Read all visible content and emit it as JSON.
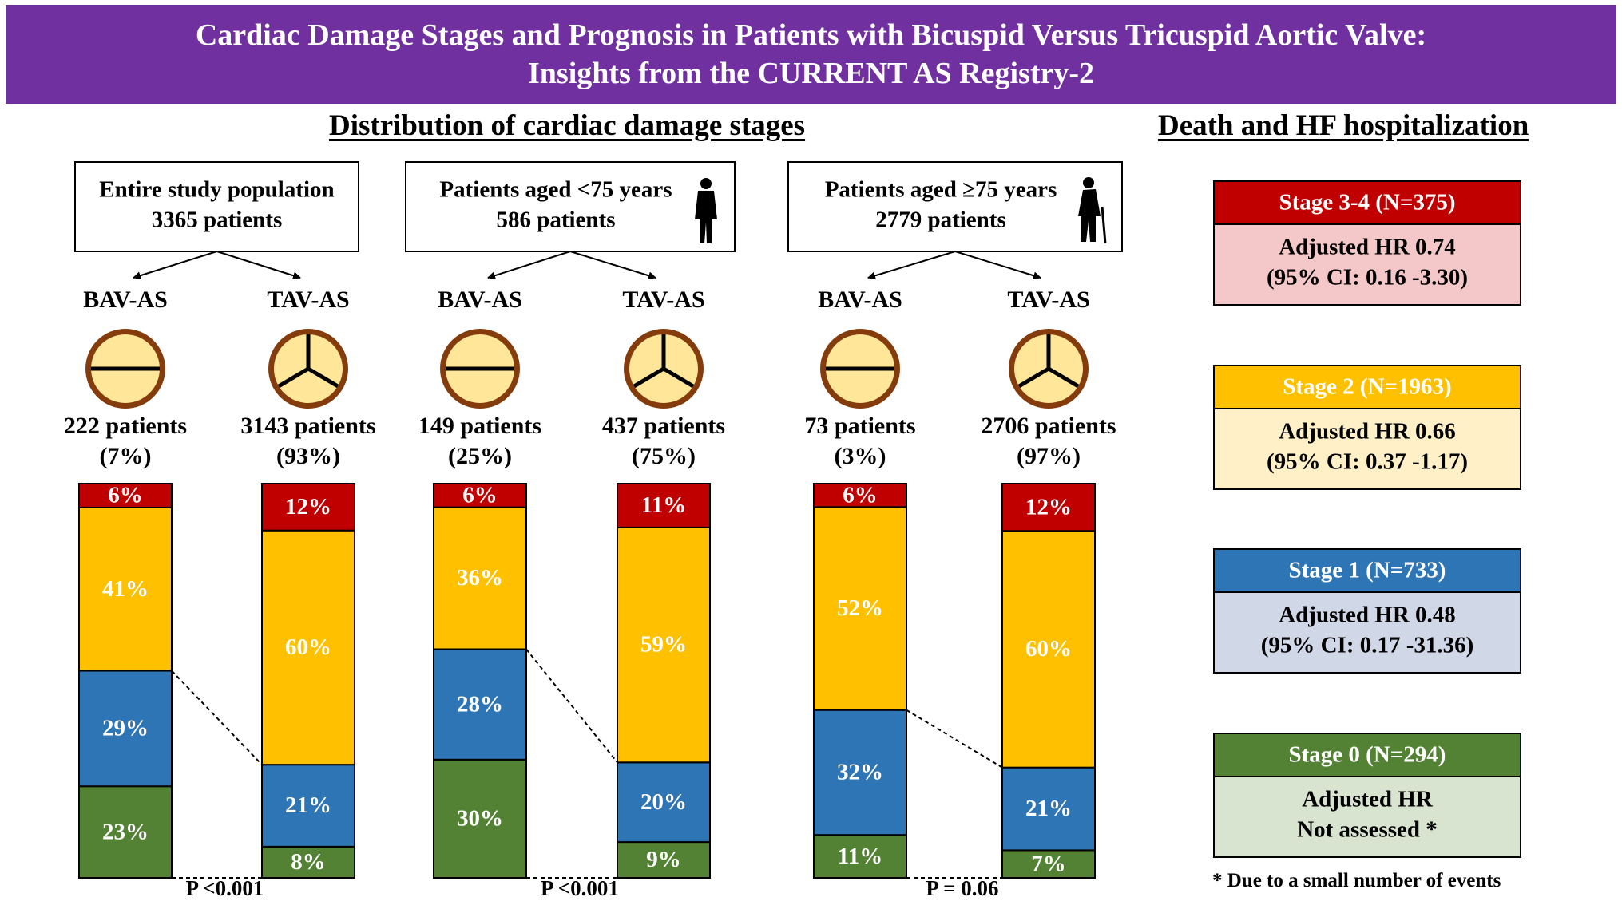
{
  "header": {
    "title_line1": "Cardiac Damage Stages and Prognosis in Patients with Bicuspid Versus Tricuspid Aortic Valve:",
    "title_line2": "Insights from the CURRENT AS Registry-2"
  },
  "left_title": "Distribution of cardiac damage stages",
  "right_title": "Death and HF hospitalization",
  "colors": {
    "stage34": "#c00000",
    "stage2": "#ffc000",
    "stage1": "#2e75b6",
    "stage0": "#548235",
    "stage34_body": "#f4c7c8",
    "stage2_body": "#fff0c8",
    "stage1_body": "#d0d8e8",
    "stage0_body": "#d8e4d0",
    "valve_fill": "#ffe699",
    "valve_ring": "#843c0c"
  },
  "chart_data": {
    "type": "bar",
    "stacked": true,
    "stack_order": [
      "Stage 0",
      "Stage 1",
      "Stage 2",
      "Stage 3-4"
    ],
    "groups": [
      {
        "title_line1": "Entire study population",
        "title_line2": "3365 patients",
        "icon": "none",
        "p_value": "P <0.001",
        "bars": [
          {
            "label": "BAV-AS",
            "valve": "bicuspid-valve-icon",
            "patients": "222 patients",
            "share": "(7%)",
            "values": [
              23,
              29,
              41,
              6
            ],
            "labels": [
              "23%",
              "29%",
              "41%",
              "6%"
            ]
          },
          {
            "label": "TAV-AS",
            "valve": "tricuspid-valve-icon",
            "patients": "3143 patients",
            "share": "(93%)",
            "values": [
              8,
              21,
              60,
              12
            ],
            "labels": [
              "8%",
              "21%",
              "60%",
              "12%"
            ]
          }
        ]
      },
      {
        "title_line1": "Patients aged <75 years",
        "title_line2": "586 patients",
        "icon": "standing-person-icon",
        "p_value": "P <0.001",
        "bars": [
          {
            "label": "BAV-AS",
            "valve": "bicuspid-valve-icon",
            "patients": "149 patients",
            "share": "(25%)",
            "values": [
              30,
              28,
              36,
              6
            ],
            "labels": [
              "30%",
              "28%",
              "36%",
              "6%"
            ]
          },
          {
            "label": "TAV-AS",
            "valve": "tricuspid-valve-icon",
            "patients": "437 patients",
            "share": "(75%)",
            "values": [
              9,
              20,
              59,
              11
            ],
            "labels": [
              "9%",
              "20%",
              "59%",
              "11%"
            ]
          }
        ]
      },
      {
        "title_line1": "Patients aged ≥75 years",
        "title_line2": "2779 patients",
        "icon": "elderly-person-cane-icon",
        "p_value": "P = 0.06",
        "bars": [
          {
            "label": "BAV-AS",
            "valve": "bicuspid-valve-icon",
            "patients": "73 patients",
            "share": "(3%)",
            "values": [
              11,
              32,
              52,
              6
            ],
            "labels": [
              "11%",
              "32%",
              "52%",
              "6%"
            ]
          },
          {
            "label": "TAV-AS",
            "valve": "tricuspid-valve-icon",
            "patients": "2706 patients",
            "share": "(97%)",
            "values": [
              7,
              21,
              60,
              12
            ],
            "labels": [
              "7%",
              "21%",
              "60%",
              "12%"
            ]
          }
        ]
      }
    ]
  },
  "outcomes": [
    {
      "stage": "Stage 3-4 (N=375)",
      "line1": "Adjusted HR 0.74",
      "line2": "(95% CI: 0.16 -3.30)",
      "color_key": "stage34"
    },
    {
      "stage": "Stage 2 (N=1963)",
      "line1": "Adjusted HR 0.66",
      "line2": "(95% CI: 0.37 -1.17)",
      "color_key": "stage2"
    },
    {
      "stage": "Stage 1 (N=733)",
      "line1": "Adjusted HR 0.48",
      "line2": "(95% CI: 0.17 -31.36)",
      "color_key": "stage1"
    },
    {
      "stage": "Stage 0 (N=294)",
      "line1": "Adjusted HR",
      "line2": "Not assessed *",
      "color_key": "stage0"
    }
  ],
  "footnote": "* Due to a small number of events"
}
